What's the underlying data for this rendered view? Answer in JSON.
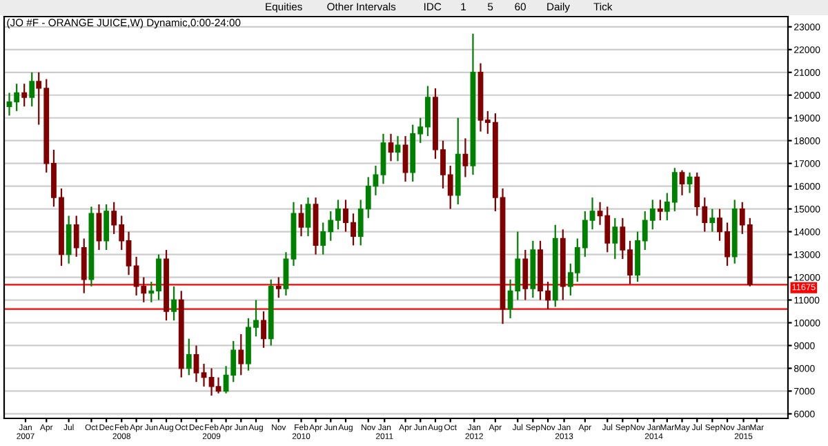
{
  "chart_data": {
    "type": "candlestick",
    "title": "(JO #F - ORANGE JUICE,W) Dynamic,0:00-24:00",
    "annotations": [
      "Equities",
      "Other Intervals",
      "IDC",
      "1",
      "5",
      "60",
      "Daily",
      "Tick"
    ],
    "x": [
      "2006-11-15",
      "2006-12-15",
      "2007-01-15",
      "2007-02-15",
      "2007-03-15",
      "2007-04-15",
      "2007-05-15",
      "2007-06-15",
      "2007-07-15",
      "2007-08-15",
      "2007-09-15",
      "2007-10-15",
      "2007-11-15",
      "2007-12-15",
      "2008-01-15",
      "2008-02-15",
      "2008-03-15",
      "2008-04-15",
      "2008-05-15",
      "2008-06-15",
      "2008-07-15",
      "2008-08-15",
      "2008-09-15",
      "2008-10-15",
      "2008-11-15",
      "2008-12-15",
      "2009-01-15",
      "2009-02-15",
      "2009-03-15",
      "2009-04-15",
      "2009-05-15",
      "2009-06-15",
      "2009-07-15",
      "2009-08-15",
      "2009-09-15",
      "2009-10-15",
      "2009-11-15",
      "2009-12-15",
      "2010-01-15",
      "2010-02-15",
      "2010-03-15",
      "2010-04-15",
      "2010-05-15",
      "2010-06-15",
      "2010-07-15",
      "2010-08-15",
      "2010-09-15",
      "2010-10-15",
      "2010-11-15",
      "2010-12-15",
      "2011-01-15",
      "2011-02-15",
      "2011-03-15",
      "2011-04-15",
      "2011-05-15",
      "2011-06-15",
      "2011-07-15",
      "2011-08-15",
      "2011-09-15",
      "2011-10-15",
      "2011-11-15",
      "2011-12-15",
      "2012-01-15",
      "2012-02-15",
      "2012-03-15",
      "2012-04-15",
      "2012-05-15",
      "2012-06-15",
      "2012-07-15",
      "2012-08-15",
      "2012-09-15",
      "2012-10-15",
      "2012-11-15",
      "2012-12-15",
      "2013-01-15",
      "2013-02-15",
      "2013-03-15",
      "2013-04-15",
      "2013-05-15",
      "2013-06-15",
      "2013-07-15",
      "2013-08-15",
      "2013-09-15",
      "2013-10-15",
      "2013-11-15",
      "2013-12-15",
      "2014-01-15",
      "2014-02-15",
      "2014-03-15",
      "2014-04-15",
      "2014-05-15",
      "2014-06-15",
      "2014-07-15",
      "2014-08-15",
      "2014-09-15",
      "2014-10-15",
      "2014-11-15",
      "2014-12-15",
      "2015-01-15",
      "2015-02-15"
    ],
    "ohlc": [
      [
        19500,
        20100,
        19100,
        19700
      ],
      [
        19700,
        20500,
        19300,
        20100
      ],
      [
        20100,
        20500,
        19500,
        19900
      ],
      [
        19900,
        21000,
        19500,
        20600
      ],
      [
        20600,
        21000,
        18700,
        20300
      ],
      [
        20300,
        20700,
        16600,
        17000
      ],
      [
        17000,
        17600,
        15100,
        15500
      ],
      [
        15500,
        15900,
        12500,
        13000
      ],
      [
        13000,
        14700,
        12600,
        14300
      ],
      [
        14300,
        14700,
        12900,
        13300
      ],
      [
        13300,
        13700,
        11300,
        11900
      ],
      [
        11900,
        15100,
        11600,
        14800
      ],
      [
        14800,
        15200,
        13200,
        13600
      ],
      [
        13600,
        15200,
        13200,
        14900
      ],
      [
        14900,
        15300,
        13900,
        14300
      ],
      [
        14300,
        14700,
        13200,
        13600
      ],
      [
        13600,
        14000,
        12100,
        12500
      ],
      [
        12500,
        12900,
        11200,
        11600
      ],
      [
        11600,
        12000,
        10900,
        11300
      ],
      [
        11300,
        11800,
        10900,
        11400
      ],
      [
        11400,
        13000,
        11000,
        12800
      ],
      [
        12800,
        13200,
        10100,
        10500
      ],
      [
        10500,
        11600,
        10100,
        11000
      ],
      [
        11000,
        11400,
        7600,
        8000
      ],
      [
        8000,
        9300,
        7700,
        8600
      ],
      [
        8600,
        9000,
        7400,
        7800
      ],
      [
        7800,
        8200,
        7200,
        7600
      ],
      [
        7600,
        8000,
        6800,
        7200
      ],
      [
        7200,
        7600,
        6900,
        7000
      ],
      [
        7000,
        8100,
        6900,
        7700
      ],
      [
        7700,
        9200,
        7400,
        8800
      ],
      [
        8800,
        9500,
        7700,
        8200
      ],
      [
        8200,
        10200,
        7900,
        9800
      ],
      [
        9800,
        11000,
        9400,
        10100
      ],
      [
        10100,
        10500,
        8900,
        9300
      ],
      [
        9300,
        11900,
        9000,
        11600
      ],
      [
        11600,
        12000,
        11100,
        11500
      ],
      [
        11500,
        13100,
        11200,
        12800
      ],
      [
        12800,
        15300,
        12500,
        14800
      ],
      [
        14800,
        15200,
        13800,
        14200
      ],
      [
        14200,
        15500,
        13800,
        15200
      ],
      [
        15200,
        15500,
        13000,
        13400
      ],
      [
        13400,
        14400,
        13000,
        14000
      ],
      [
        14000,
        14900,
        13600,
        14500
      ],
      [
        14500,
        15400,
        14100,
        15000
      ],
      [
        15000,
        15400,
        14000,
        14400
      ],
      [
        14400,
        14800,
        13400,
        13800
      ],
      [
        13800,
        15400,
        13400,
        15000
      ],
      [
        15000,
        16400,
        14600,
        16000
      ],
      [
        16000,
        16900,
        15600,
        16500
      ],
      [
        16500,
        18300,
        16100,
        17900
      ],
      [
        17900,
        18300,
        17100,
        17500
      ],
      [
        17500,
        18200,
        17100,
        17800
      ],
      [
        17800,
        18200,
        16200,
        16600
      ],
      [
        16600,
        18700,
        16200,
        18300
      ],
      [
        18300,
        19000,
        17900,
        18600
      ],
      [
        18600,
        20400,
        18200,
        19900
      ],
      [
        19900,
        20300,
        17200,
        17600
      ],
      [
        17600,
        18000,
        15900,
        16500
      ],
      [
        16500,
        16900,
        15000,
        15600
      ],
      [
        15600,
        19000,
        15200,
        17400
      ],
      [
        17400,
        18100,
        16400,
        16900
      ],
      [
        16900,
        22700,
        16500,
        21000
      ],
      [
        21000,
        21400,
        18400,
        18900
      ],
      [
        18900,
        19300,
        18300,
        18800
      ],
      [
        18800,
        19200,
        14900,
        15500
      ],
      [
        15500,
        15900,
        9950,
        10600
      ],
      [
        10600,
        11900,
        10200,
        11400
      ],
      [
        11400,
        14000,
        11000,
        12800
      ],
      [
        12800,
        13200,
        11000,
        11500
      ],
      [
        11500,
        13600,
        11100,
        13200
      ],
      [
        13200,
        13600,
        11000,
        11400
      ],
      [
        11400,
        11800,
        10600,
        11000
      ],
      [
        11000,
        14300,
        10700,
        13700
      ],
      [
        13700,
        14100,
        11000,
        11600
      ],
      [
        11600,
        12600,
        11200,
        12200
      ],
      [
        12200,
        13700,
        11800,
        13300
      ],
      [
        13300,
        14900,
        12900,
        14500
      ],
      [
        14500,
        15500,
        14100,
        14900
      ],
      [
        14900,
        15300,
        14300,
        14700
      ],
      [
        14700,
        15100,
        13100,
        13500
      ],
      [
        13500,
        14600,
        12800,
        14200
      ],
      [
        14200,
        14600,
        12800,
        13200
      ],
      [
        13200,
        13600,
        11700,
        12100
      ],
      [
        12100,
        14000,
        11800,
        13600
      ],
      [
        13600,
        14900,
        13200,
        14500
      ],
      [
        14500,
        15400,
        14100,
        15000
      ],
      [
        15000,
        15400,
        14500,
        14900
      ],
      [
        14900,
        15700,
        14500,
        15300
      ],
      [
        15300,
        16800,
        14900,
        16600
      ],
      [
        16600,
        16700,
        15600,
        16100
      ],
      [
        16100,
        16600,
        15700,
        16400
      ],
      [
        16400,
        16600,
        14700,
        15100
      ],
      [
        15100,
        15500,
        14000,
        14400
      ],
      [
        14400,
        15000,
        14000,
        14600
      ],
      [
        14600,
        15000,
        13600,
        14000
      ],
      [
        14000,
        14400,
        12500,
        12900
      ],
      [
        12900,
        15400,
        12600,
        15000
      ],
      [
        15000,
        15300,
        13900,
        14300
      ],
      [
        14300,
        14600,
        11600,
        11675
      ]
    ],
    "colors": [
      "#008000",
      "#008000",
      "#800000",
      "#008000",
      "#800000",
      "#800000",
      "#800000",
      "#800000",
      "#008000",
      "#800000",
      "#800000",
      "#008000",
      "#800000",
      "#008000",
      "#800000",
      "#800000",
      "#800000",
      "#800000",
      "#800000",
      "#008000",
      "#008000",
      "#800000",
      "#008000",
      "#800000",
      "#008000",
      "#800000",
      "#800000",
      "#800000",
      "#800000",
      "#008000",
      "#008000",
      "#800000",
      "#008000",
      "#008000",
      "#800000",
      "#008000",
      "#800000",
      "#008000",
      "#008000",
      "#800000",
      "#008000",
      "#800000",
      "#008000",
      "#008000",
      "#008000",
      "#800000",
      "#800000",
      "#008000",
      "#008000",
      "#008000",
      "#008000",
      "#800000",
      "#008000",
      "#800000",
      "#008000",
      "#008000",
      "#008000",
      "#800000",
      "#800000",
      "#800000",
      "#008000",
      "#800000",
      "#008000",
      "#800000",
      "#800000",
      "#800000",
      "#800000",
      "#008000",
      "#008000",
      "#800000",
      "#008000",
      "#800000",
      "#800000",
      "#008000",
      "#800000",
      "#008000",
      "#008000",
      "#008000",
      "#008000",
      "#800000",
      "#800000",
      "#008000",
      "#800000",
      "#800000",
      "#008000",
      "#008000",
      "#008000",
      "#800000",
      "#008000",
      "#008000",
      "#800000",
      "#008000",
      "#800000",
      "#800000",
      "#008000",
      "#800000",
      "#800000",
      "#008000",
      "#800000",
      "#800000"
    ],
    "xlim": [
      "2006-10-25",
      "2015-07-20"
    ],
    "xticks": [
      {
        "value": "2007-01-20",
        "label": "Jan\n2007"
      },
      {
        "value": "2007-04-15",
        "label": "Apr"
      },
      {
        "value": "2007-07-15",
        "label": "Jul"
      },
      {
        "value": "2007-10-15",
        "label": "Oct"
      },
      {
        "value": "2007-12-15",
        "label": "Dec"
      },
      {
        "value": "2008-02-15",
        "label": "Feb\n2008"
      },
      {
        "value": "2008-04-15",
        "label": "Apr"
      },
      {
        "value": "2008-06-15",
        "label": "Jun"
      },
      {
        "value": "2008-08-15",
        "label": "Aug"
      },
      {
        "value": "2008-10-15",
        "label": "Oct"
      },
      {
        "value": "2008-12-15",
        "label": "Dec"
      },
      {
        "value": "2009-02-15",
        "label": "Feb\n2009"
      },
      {
        "value": "2009-04-15",
        "label": "Apr"
      },
      {
        "value": "2009-06-15",
        "label": "Jun"
      },
      {
        "value": "2009-08-15",
        "label": "Aug"
      },
      {
        "value": "2009-11-15",
        "label": "Nov"
      },
      {
        "value": "2010-02-15",
        "label": "Feb\n2010"
      },
      {
        "value": "2010-04-15",
        "label": "Apr"
      },
      {
        "value": "2010-06-15",
        "label": "Jun"
      },
      {
        "value": "2010-08-15",
        "label": "Aug"
      },
      {
        "value": "2010-11-15",
        "label": "Nov"
      },
      {
        "value": "2011-01-20",
        "label": "Jan\n2011"
      },
      {
        "value": "2011-04-15",
        "label": "Apr"
      },
      {
        "value": "2011-06-15",
        "label": "Jun"
      },
      {
        "value": "2011-08-15",
        "label": "Aug"
      },
      {
        "value": "2011-10-15",
        "label": "Oct"
      },
      {
        "value": "2012-01-20",
        "label": "Jan\n2012"
      },
      {
        "value": "2012-04-15",
        "label": "Apr"
      },
      {
        "value": "2012-07-15",
        "label": "Jul"
      },
      {
        "value": "2012-09-15",
        "label": "Sep"
      },
      {
        "value": "2012-11-15",
        "label": "Nov"
      },
      {
        "value": "2013-01-20",
        "label": "Jan\n2013"
      },
      {
        "value": "2013-04-15",
        "label": "Apr"
      },
      {
        "value": "2013-07-15",
        "label": "Jul"
      },
      {
        "value": "2013-09-15",
        "label": "Sep"
      },
      {
        "value": "2013-11-15",
        "label": "Nov"
      },
      {
        "value": "2014-01-20",
        "label": "Jan\n2014"
      },
      {
        "value": "2014-03-15",
        "label": "Mar"
      },
      {
        "value": "2014-05-15",
        "label": "May"
      },
      {
        "value": "2014-07-15",
        "label": "Jul"
      },
      {
        "value": "2014-09-15",
        "label": "Sep"
      },
      {
        "value": "2014-11-15",
        "label": "Nov"
      },
      {
        "value": "2015-01-20",
        "label": "Jan\n2015"
      },
      {
        "value": "2015-03-15",
        "label": "Mar"
      }
    ],
    "ylim": [
      5800,
      23450
    ],
    "yticks": [
      6000,
      7000,
      8000,
      9000,
      10000,
      11000,
      12000,
      13000,
      14000,
      15000,
      16000,
      17000,
      18000,
      19000,
      20000,
      21000,
      22000,
      23000
    ],
    "grid": "y",
    "ref_lines": [
      {
        "axis": "y",
        "value": 11675,
        "label": "11675",
        "color": "#ff0000"
      },
      {
        "axis": "y",
        "value": 10600,
        "color": "#ff0000"
      }
    ]
  }
}
